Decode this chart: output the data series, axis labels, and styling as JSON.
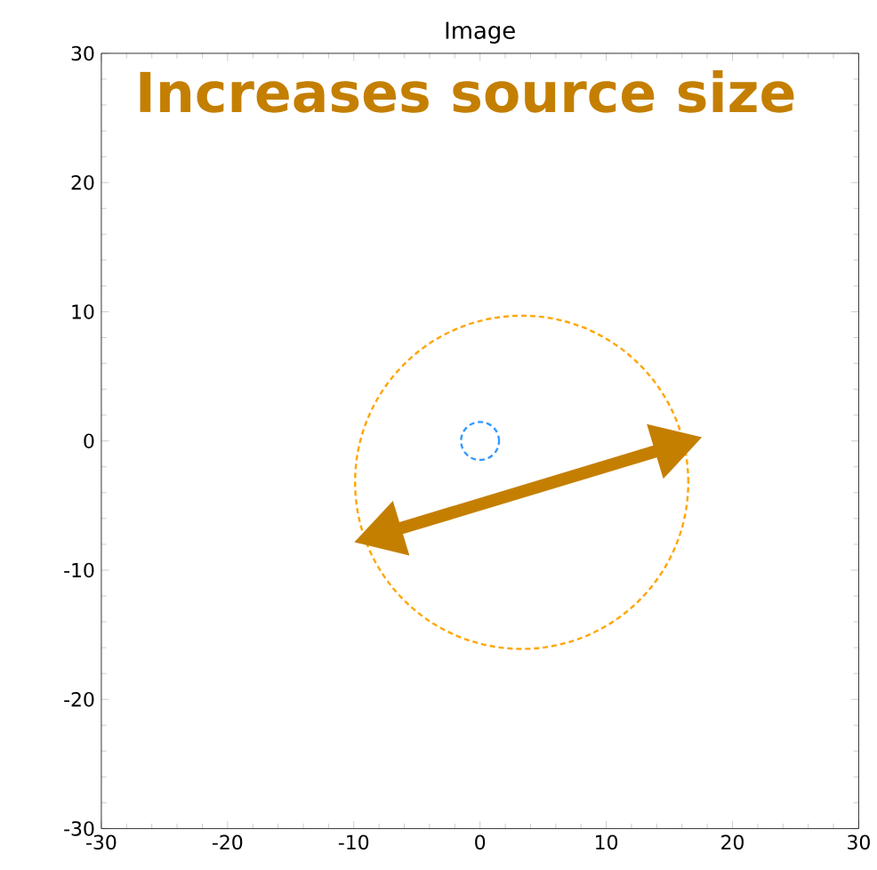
{
  "chart_data": {
    "type": "bubble",
    "title": "Image",
    "line_style": "dashed",
    "series": [
      {
        "x": [
          3.3,
          0
        ],
        "values": [
          -3.2,
          0
        ],
        "sizes": [
          1,
          0.013
        ],
        "colors": [
          "#ffa500",
          "#3399ff"
        ]
      }
    ],
    "xlim": [
      -30,
      30
    ],
    "ylim": [
      -30,
      30
    ],
    "xticks": [
      -30,
      -20,
      -10,
      0,
      10,
      20,
      30
    ],
    "yticks": [
      -30,
      -20,
      -10,
      0,
      10,
      20,
      30
    ],
    "annotations": [
      "Increases source size"
    ]
  }
}
